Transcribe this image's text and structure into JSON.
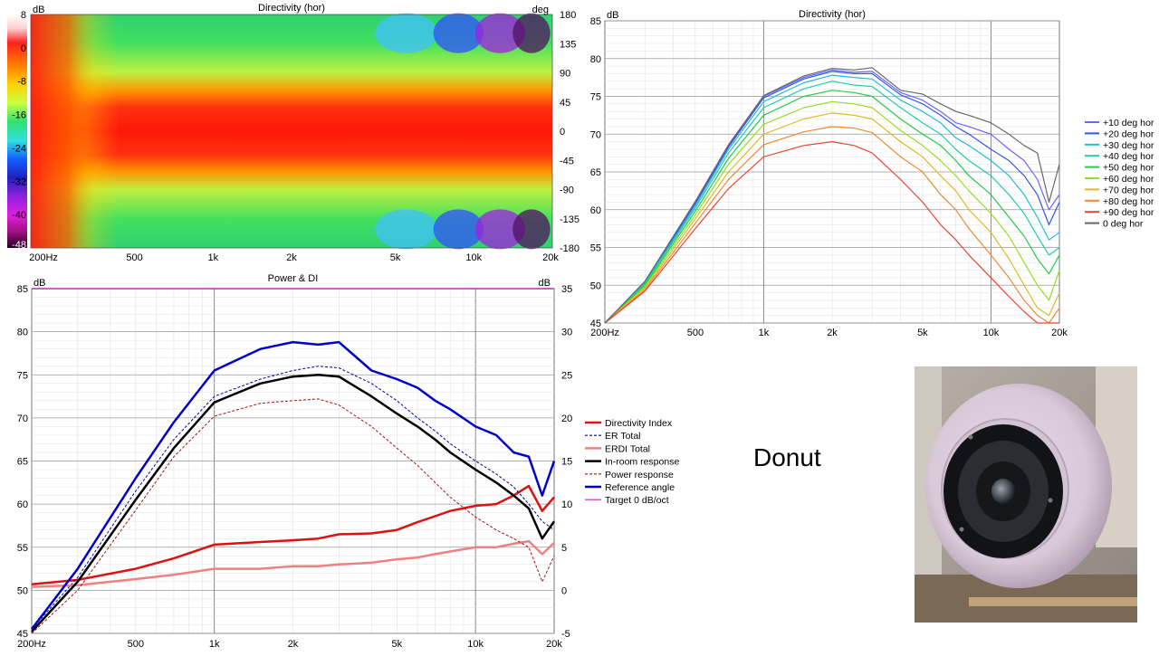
{
  "caption": "Donut",
  "photo_icon": "speaker-photo",
  "chart_data": [
    {
      "type": "heatmap",
      "title": "Directivity (hor)",
      "ylabel_left": "dB",
      "ylabel_right": "deg",
      "colorbar_ticks": [
        "8",
        "0",
        "-8",
        "-16",
        "-24",
        "-32",
        "-40",
        "-48"
      ],
      "colorbar_range": [
        -48,
        8
      ],
      "x_ticks": [
        "200Hz",
        "500",
        "1k",
        "2k",
        "5k",
        "10k",
        "20k"
      ],
      "x_tick_values": [
        200,
        500,
        1000,
        2000,
        5000,
        10000,
        20000
      ],
      "xlim": [
        200,
        20000
      ],
      "x_scale": "log",
      "y_ticks": [
        "180",
        "135",
        "90",
        "45",
        "0",
        "-45",
        "-90",
        "-135",
        "-180"
      ],
      "ylim": [
        -180,
        180
      ]
    },
    {
      "type": "line",
      "title": "Directivity (hor)",
      "ylabel": "dB",
      "x_ticks": [
        "200Hz",
        "500",
        "1k",
        "2k",
        "5k",
        "10k",
        "20k"
      ],
      "x_tick_values": [
        200,
        500,
        1000,
        2000,
        5000,
        10000,
        20000
      ],
      "xlim": [
        200,
        20000
      ],
      "x_scale": "log",
      "y_ticks": [
        "85",
        "80",
        "75",
        "70",
        "65",
        "60",
        "55",
        "50",
        "45"
      ],
      "ylim": [
        45,
        85
      ],
      "grid": true,
      "legend_position": "right",
      "x": [
        200,
        300,
        500,
        700,
        1000,
        1500,
        2000,
        2500,
        3000,
        4000,
        5000,
        6000,
        7000,
        8000,
        10000,
        12000,
        14000,
        16000,
        18000,
        20000
      ],
      "series": [
        {
          "name": "+10 deg hor",
          "color": "#6666ff",
          "values": [
            45,
            50.5,
            61,
            68.5,
            75,
            77.5,
            78.5,
            78.2,
            78.3,
            75.5,
            74.5,
            73,
            71.5,
            71,
            70,
            68,
            66.5,
            64,
            60,
            62
          ]
        },
        {
          "name": "+20 deg hor",
          "color": "#3355ee",
          "values": [
            45,
            50.4,
            60.8,
            68.3,
            74.8,
            77.3,
            78.3,
            78.0,
            78.0,
            75.2,
            74,
            72.5,
            71,
            70,
            68,
            66.5,
            64.5,
            62,
            58,
            61
          ]
        },
        {
          "name": "+30 deg hor",
          "color": "#22bbdd",
          "values": [
            45,
            50.3,
            60.5,
            68,
            74.3,
            76.8,
            77.8,
            77.5,
            77.3,
            74.5,
            73,
            71.5,
            69.5,
            68.5,
            66.5,
            64.5,
            62,
            59,
            56,
            57
          ]
        },
        {
          "name": "+40 deg hor",
          "color": "#22ccaa",
          "values": [
            45,
            50.2,
            60.2,
            67.5,
            73.5,
            76,
            77,
            76.5,
            76.3,
            73.5,
            71.5,
            70,
            68,
            66.5,
            64.5,
            62,
            59.5,
            56.5,
            54,
            55
          ]
        },
        {
          "name": "+50 deg hor",
          "color": "#22cc44",
          "values": [
            45,
            50,
            59.8,
            66.8,
            72.5,
            75,
            75.8,
            75.5,
            75,
            72,
            70,
            68.5,
            66.5,
            64.5,
            62,
            59,
            56.5,
            53.5,
            51.5,
            54
          ]
        },
        {
          "name": "+60 deg hor",
          "color": "#99dd22",
          "values": [
            45,
            49.8,
            59.3,
            66,
            71.3,
            73.5,
            74.3,
            74,
            73.5,
            70.5,
            68.5,
            66.5,
            64.5,
            62.5,
            59.5,
            56.5,
            53,
            50,
            48,
            52
          ]
        },
        {
          "name": "+70 deg hor",
          "color": "#ddbb22",
          "values": [
            45,
            49.6,
            58.8,
            65,
            70,
            72,
            72.8,
            72.5,
            72,
            69,
            67,
            64.5,
            62.5,
            60,
            57,
            53.5,
            50,
            47,
            46,
            49
          ]
        },
        {
          "name": "+80 deg hor",
          "color": "#ee8833",
          "values": [
            45,
            49.4,
            58.2,
            64,
            68.6,
            70.3,
            71,
            70.8,
            70.2,
            67,
            65,
            62,
            60,
            57.5,
            54,
            51,
            48,
            46,
            45,
            47
          ]
        },
        {
          "name": "+90 deg hor",
          "color": "#ee4433",
          "values": [
            45,
            49.2,
            57.5,
            62.8,
            67,
            68.5,
            69,
            68.5,
            67.5,
            64,
            61,
            58,
            56,
            54,
            51,
            48.5,
            46.5,
            45,
            45,
            45
          ]
        },
        {
          "name": "0 deg hor",
          "color": "#666666",
          "values": [
            45,
            50.5,
            61.1,
            68.6,
            75.1,
            77.7,
            78.7,
            78.5,
            78.8,
            75.8,
            75.3,
            74,
            73,
            72.5,
            71.5,
            70,
            68.5,
            67.5,
            61,
            66
          ]
        }
      ]
    },
    {
      "type": "line",
      "title": "Power & DI",
      "ylabel_left": "dB",
      "ylabel_right": "dB",
      "x_ticks": [
        "200Hz",
        "500",
        "1k",
        "2k",
        "5k",
        "10k",
        "20k"
      ],
      "x_tick_values": [
        200,
        500,
        1000,
        2000,
        5000,
        10000,
        20000
      ],
      "xlim": [
        200,
        20000
      ],
      "x_scale": "log",
      "y_ticks_left": [
        "85",
        "80",
        "75",
        "70",
        "65",
        "60",
        "55",
        "50",
        "45"
      ],
      "ylim_left": [
        45,
        85
      ],
      "y_ticks_right": [
        "35",
        "30",
        "25",
        "20",
        "15",
        "10",
        "5",
        "0",
        "-5"
      ],
      "ylim_right": [
        -5,
        35
      ],
      "grid": true,
      "legend_position": "right",
      "x": [
        200,
        300,
        500,
        700,
        1000,
        1500,
        2000,
        2500,
        3000,
        4000,
        5000,
        6000,
        7000,
        8000,
        10000,
        12000,
        14000,
        16000,
        18000,
        20000
      ],
      "series": [
        {
          "name": "Directivity Index",
          "color": "#dd1111",
          "width": 2.5,
          "dash": "",
          "axis": "right",
          "values": [
            0.7,
            1.2,
            2.5,
            3.7,
            5.3,
            5.6,
            5.8,
            6.0,
            6.5,
            6.6,
            7.0,
            7.9,
            8.6,
            9.2,
            9.8,
            10.0,
            11.0,
            12.1,
            9.2,
            10.8
          ]
        },
        {
          "name": "ER Total",
          "color": "#0000aa",
          "width": 1,
          "dash": "3,2",
          "axis": "left",
          "values": [
            45.5,
            51.5,
            61.5,
            67.5,
            72.5,
            74.5,
            75.5,
            76,
            75.8,
            74,
            72,
            70,
            68.5,
            67,
            65,
            63.5,
            62,
            60,
            58,
            57
          ]
        },
        {
          "name": "ERDI Total",
          "color": "#f08080",
          "width": 2.5,
          "dash": "",
          "axis": "right",
          "values": [
            0.4,
            0.6,
            1.3,
            1.8,
            2.5,
            2.5,
            2.8,
            2.8,
            3.0,
            3.2,
            3.6,
            3.8,
            4.2,
            4.5,
            5.0,
            5.0,
            5.4,
            5.7,
            4.2,
            5.5
          ]
        },
        {
          "name": "In-room response",
          "color": "#000000",
          "width": 2.5,
          "dash": "",
          "axis": "left",
          "values": [
            45.2,
            51,
            60.5,
            66.5,
            71.8,
            74,
            74.8,
            75,
            74.8,
            72.5,
            70.5,
            69,
            67.5,
            66,
            64,
            62.5,
            61,
            59.5,
            56,
            58
          ]
        },
        {
          "name": "Power response",
          "color": "#aa1111",
          "width": 1,
          "dash": "3,2",
          "axis": "left",
          "values": [
            45,
            50,
            59.3,
            65.5,
            70.2,
            71.7,
            72,
            72.2,
            71.5,
            69,
            66.5,
            64.5,
            62.5,
            60.8,
            58.5,
            57,
            56,
            55,
            51,
            54
          ]
        },
        {
          "name": "Reference angle",
          "color": "#0000cc",
          "width": 2.5,
          "dash": "",
          "axis": "left",
          "values": [
            45.5,
            52.5,
            63,
            69.5,
            75.5,
            78,
            78.8,
            78.5,
            78.8,
            75.5,
            74.5,
            73.5,
            72,
            71,
            69,
            68,
            66,
            65.5,
            61,
            65
          ]
        },
        {
          "name": "Target 0 dB/oct",
          "color": "#cc22cc",
          "width": 1.5,
          "dash": "",
          "axis": "left",
          "values": [
            85,
            85,
            85,
            85,
            85,
            85,
            85,
            85,
            85,
            85,
            85,
            85,
            85,
            85,
            85,
            85,
            85,
            85,
            85,
            85
          ]
        }
      ]
    }
  ]
}
